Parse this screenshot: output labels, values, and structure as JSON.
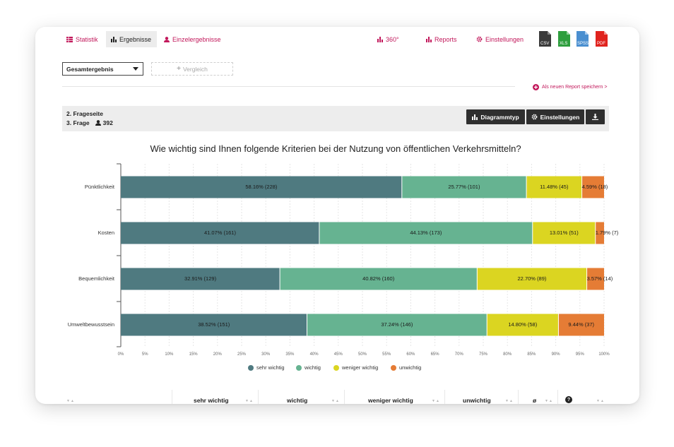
{
  "nav": {
    "tabs": [
      {
        "label": "Statistik",
        "icon": "table-icon"
      },
      {
        "label": "Ergebnisse",
        "icon": "bar-chart-icon"
      },
      {
        "label": "Einzelergebnisse",
        "icon": "user-icon"
      }
    ],
    "right": [
      {
        "label": "360°",
        "icon": "bar-chart-icon"
      },
      {
        "label": "Reports",
        "icon": "bar-chart-icon"
      },
      {
        "label": "Einstellungen",
        "icon": "gear-icon"
      }
    ],
    "exports": [
      {
        "label": "CSV",
        "color": "#3a3a3a"
      },
      {
        "label": "XLS",
        "color": "#2e9e3e"
      },
      {
        "label": "SPSS",
        "color": "#4a8fd0"
      },
      {
        "label": "PDF",
        "color": "#e0231e"
      }
    ]
  },
  "toolbar": {
    "select_value": "Gesamtergebnis",
    "compare_label": "Vergleich",
    "save_report_label": "Als neuen Report speichern >"
  },
  "question_header": {
    "page_label": "2. Frageseite",
    "question_label": "3. Frage",
    "respondents": "392",
    "buttons": {
      "chart_type": "Diagrammtyp",
      "settings": "Einstellungen"
    }
  },
  "chart_data": {
    "type": "bar",
    "orientation": "horizontal",
    "stacked": true,
    "title": "Wie wichtig sind Ihnen folgende Kriterien bei der Nutzung von öffentlichen Verkehrsmitteln?",
    "categories": [
      "Pünktlichkeit",
      "Kosten",
      "Bequemlichkeit",
      "Umweltbewusstsein"
    ],
    "series": [
      {
        "name": "sehr wichtig",
        "color": "#4f7a80",
        "values": [
          58.16,
          41.07,
          32.91,
          38.52
        ],
        "labels": [
          "58.16% (228)",
          "41.07% (161)",
          "32.91% (129)",
          "38.52% (151)"
        ]
      },
      {
        "name": "wichtig",
        "color": "#66b391",
        "values": [
          25.77,
          44.13,
          40.82,
          37.24
        ],
        "labels": [
          "25.77% (101)",
          "44.13% (173)",
          "40.82% (160)",
          "37.24% (146)"
        ]
      },
      {
        "name": "weniger wichtig",
        "color": "#dbd521",
        "values": [
          11.48,
          13.01,
          22.7,
          14.8
        ],
        "labels": [
          "11.48% (45)",
          "13.01% (51)",
          "22.70% (89)",
          "14.80% (58)"
        ]
      },
      {
        "name": "unwichtig",
        "color": "#e57c35",
        "values": [
          4.59,
          1.79,
          3.57,
          9.44
        ],
        "labels": [
          "4.59% (18)",
          "1.79% (7)",
          "3.57% (14)",
          "9.44% (37)"
        ]
      }
    ],
    "xlim": [
      0,
      100
    ],
    "xticks": [
      "0%",
      "5%",
      "10%",
      "15%",
      "20%",
      "25%",
      "30%",
      "35%",
      "40%",
      "45%",
      "50%",
      "55%",
      "60%",
      "65%",
      "70%",
      "75%",
      "80%",
      "85%",
      "90%",
      "95%",
      "100%"
    ],
    "grid": true,
    "legend": "bottom"
  },
  "table": {
    "headers": [
      "sehr wichtig",
      "wichtig",
      "weniger wichtig",
      "unwichtig",
      "ø",
      "?"
    ]
  }
}
